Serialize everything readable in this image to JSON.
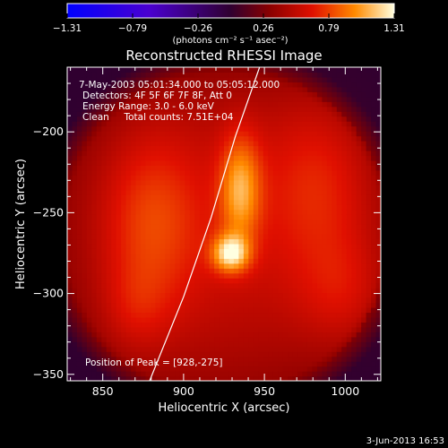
{
  "chart_data": {
    "type": "heatmap",
    "title": "Reconstructed RHESSI Image",
    "xlabel": "Heliocentric X (arcsec)",
    "ylabel": "Heliocentric Y (arcsec)",
    "xlim": [
      828,
      1022
    ],
    "ylim": [
      -354,
      -160
    ],
    "x_ticks": [
      850,
      900,
      950,
      1000
    ],
    "y_ticks": [
      -200,
      -250,
      -300,
      -350
    ],
    "colorbar": {
      "range": [
        -1.31,
        1.31
      ],
      "ticks": [
        "-1.31",
        "-0.79",
        "-0.26",
        "0.26",
        "0.79",
        "1.31"
      ],
      "units": "(photons cm⁻² s⁻¹ asec⁻²)"
    },
    "annotations": [
      "7-May-2003 05:01:34.000  to 05:05:12.000",
      "Detectors: 4F 5F 6F 7F 8F, Att 0",
      "Energy Range: 3.0 - 6.0 keV",
      "Clean     Total counts: 7.51E+04"
    ],
    "peak_label": "Position of Peak = [928,-275]",
    "peak": [
      928,
      -275
    ],
    "peak_value": 1.31,
    "background_level": 0.55,
    "limb_points": [
      [
        879,
        -354
      ],
      [
        900,
        -302
      ],
      [
        917,
        -253
      ],
      [
        932,
        -203
      ],
      [
        947,
        -160
      ]
    ],
    "sources": [
      {
        "x": 929,
        "y": -275,
        "sx": 8,
        "sy": 8,
        "amp": 0.7
      },
      {
        "x": 935,
        "y": -235,
        "sx": 9,
        "sy": 24,
        "amp": 0.55
      },
      {
        "x": 880,
        "y": -255,
        "sx": 22,
        "sy": 40,
        "amp": 0.3
      },
      {
        "x": 985,
        "y": -230,
        "sx": 25,
        "sy": 40,
        "amp": 0.25
      },
      {
        "x": 1000,
        "y": -300,
        "sx": 20,
        "sy": 25,
        "amp": 0.2
      },
      {
        "x": 870,
        "y": -310,
        "sx": 15,
        "sy": 20,
        "amp": 0.15
      }
    ],
    "disk": {
      "x": 925,
      "y": -262,
      "rx": 98,
      "ry": 98
    },
    "colormap": "hot-blue-diverging"
  },
  "footer": {
    "timestamp": "3-Jun-2013 16:53"
  }
}
